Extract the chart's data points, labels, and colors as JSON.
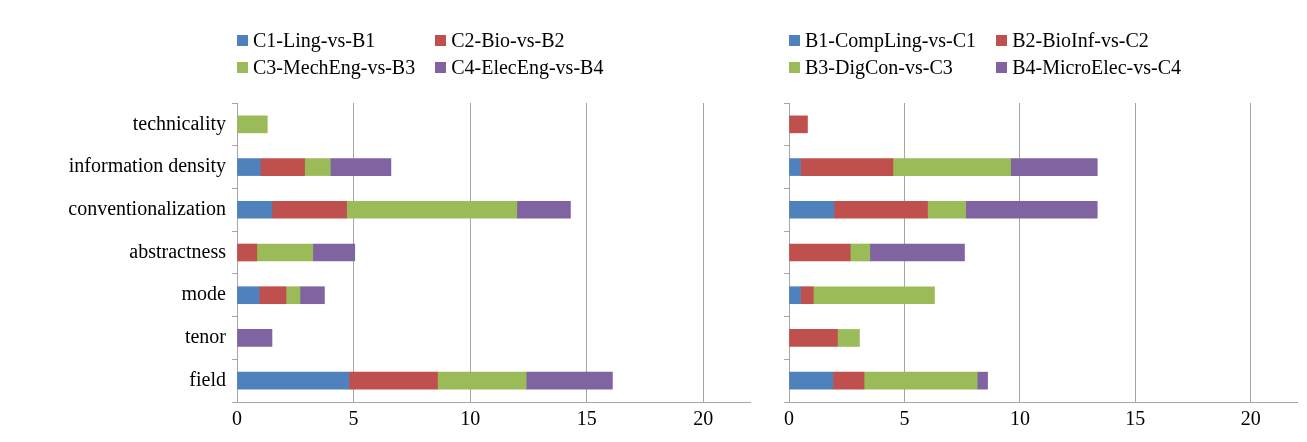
{
  "chart_data": [
    {
      "type": "bar",
      "orientation": "horizontal",
      "stacked": true,
      "categories": [
        "technicality",
        "information density",
        "conventionalization",
        "abstractness",
        "mode",
        "tenor",
        "field"
      ],
      "series": [
        {
          "name": "C1-Ling-vs-B1",
          "color": "#4f81bd",
          "values": [
            null,
            1.0,
            1.5,
            null,
            0.95,
            null,
            4.8
          ]
        },
        {
          "name": "C2-Bio-vs-B2",
          "color": "#c0504d",
          "values": [
            null,
            1.9,
            3.2,
            0.85,
            1.15,
            null,
            3.8
          ]
        },
        {
          "name": "C3-MechEng-vs-B3",
          "color": "#9bbb59",
          "values": [
            1.3,
            1.1,
            7.3,
            2.4,
            0.6,
            null,
            3.8
          ]
        },
        {
          "name": "C4-ElecEng-vs-B4",
          "color": "#8064a2",
          "values": [
            null,
            2.6,
            2.3,
            1.8,
            1.05,
            1.5,
            3.7
          ]
        }
      ],
      "xlim": [
        0,
        22
      ],
      "xticks": [
        0,
        5,
        10,
        15,
        20
      ],
      "grid": "x",
      "legend": "top"
    },
    {
      "type": "bar",
      "orientation": "horizontal",
      "stacked": true,
      "categories": [
        null,
        null,
        null,
        null,
        null,
        null,
        null
      ],
      "series": [
        {
          "name": "B1-CompLing-vs-C1",
          "color": "#4f81bd",
          "values": [
            null,
            0.5,
            1.95,
            null,
            0.5,
            null,
            1.9
          ]
        },
        {
          "name": "B2-BioInf-vs-C2",
          "color": "#c0504d",
          "values": [
            0.8,
            4.0,
            4.05,
            2.65,
            0.55,
            2.1,
            1.35
          ]
        },
        {
          "name": "B3-DigCon-vs-C3",
          "color": "#9bbb59",
          "values": [
            null,
            5.1,
            1.65,
            0.85,
            5.25,
            0.95,
            4.9
          ]
        },
        {
          "name": "B4-MicroElec-vs-C4",
          "color": "#8064a2",
          "values": [
            null,
            3.75,
            5.7,
            4.1,
            null,
            null,
            0.45
          ]
        }
      ],
      "xlim": [
        0,
        22
      ],
      "xticks": [
        0,
        5,
        10,
        15,
        20
      ],
      "grid": "x",
      "legend": "top"
    }
  ]
}
